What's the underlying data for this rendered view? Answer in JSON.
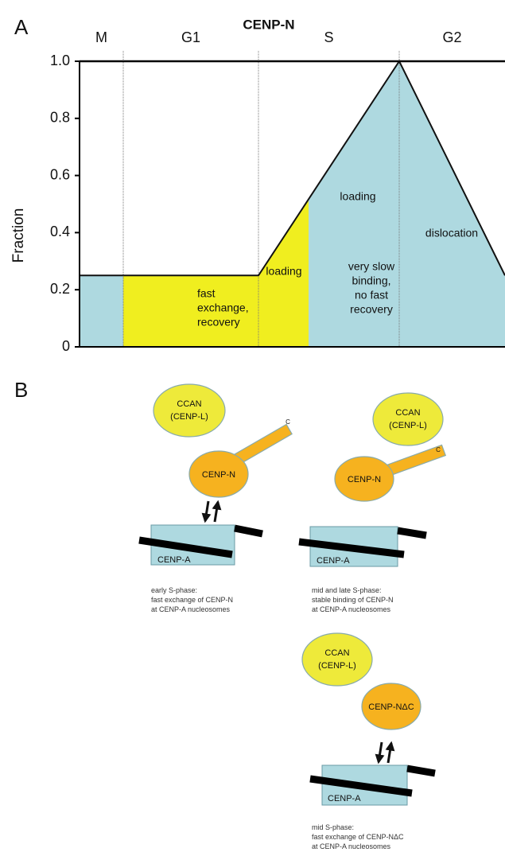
{
  "chart_data": {
    "type": "area",
    "panel_label": "A",
    "title": "CENP-N",
    "ylabel": "Fraction",
    "phases": [
      "M",
      "G1",
      "S",
      "G2"
    ],
    "boundary_values": [
      0.25,
      0.25,
      0.25,
      1.0,
      0.25
    ],
    "ylim": [
      0,
      1.0
    ],
    "yticks": [
      0,
      0.2,
      0.4,
      0.6,
      0.8,
      {
        "value": 1.0,
        "label": "1.0"
      }
    ],
    "regions": [
      {
        "color": "#aed9e0",
        "label": []
      },
      {
        "color": "#f0ee1f",
        "label": [
          "fast",
          "exchange,",
          "recovery"
        ]
      },
      {
        "color": "#f0ee1f",
        "label": [
          "loading"
        ]
      },
      {
        "color": "#aed9e0",
        "label": [
          "loading",
          "very slow",
          "binding,",
          "no fast",
          "recovery"
        ]
      },
      {
        "color": "#aed9e0",
        "label": [
          "dislocation"
        ]
      }
    ]
  },
  "diagram": {
    "panel_label": "B",
    "scenarios": [
      {
        "ccan": [
          "CCAN",
          "(CENP-L)"
        ],
        "protein": "CENP-N",
        "c_terminus": "C",
        "nucleosome": "CENP-A",
        "caption": [
          "early S-phase:",
          "fast exchange of CENP-N",
          "at CENP-A nucleosomes"
        ]
      },
      {
        "ccan": [
          "CCAN",
          "(CENP-L)"
        ],
        "protein": "CENP-N",
        "c_terminus": "C",
        "nucleosome": "CENP-A",
        "caption": [
          "mid and late S-phase:",
          "stable binding of CENP-N",
          "at CENP-A nucleosomes"
        ]
      },
      {
        "ccan": [
          "CCAN",
          "(CENP-L)"
        ],
        "protein": "CENP-NΔC",
        "nucleosome": "CENP-A",
        "caption": [
          "mid S-phase:",
          "fast exchange of CENP-NΔC",
          "at CENP-A nucleosomes"
        ]
      }
    ]
  }
}
